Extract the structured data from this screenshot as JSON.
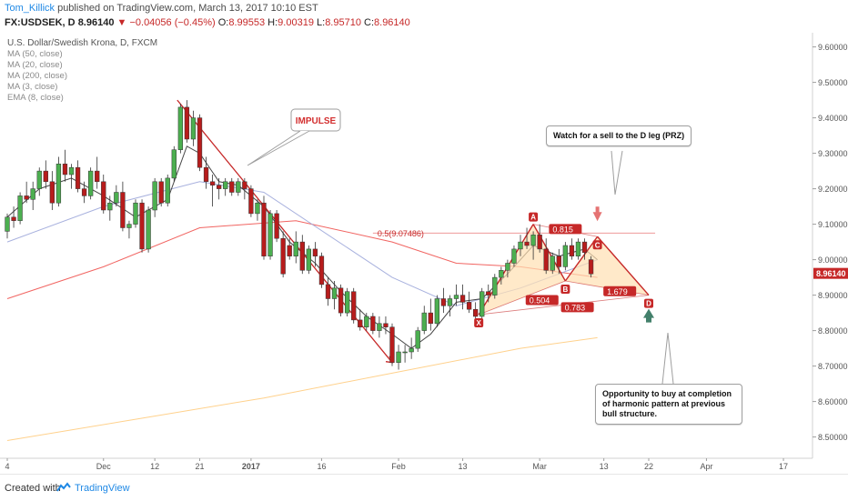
{
  "header": {
    "author": "Tom_Killick",
    "published": " published on TradingView.com, March 13, 2017 10:10 EST",
    "symbol": "FX:USDSEK, D",
    "last": "8.96140",
    "change_arrow": "▼",
    "change": "−0.04056 (−0.45%)",
    "o_label": "O:",
    "o_value": "8.99553",
    "h_label": "H:",
    "h_value": "9.00319",
    "l_label": "L:",
    "l_value": "8.95710",
    "c_label": "C:",
    "c_value": "8.96140"
  },
  "legend": [
    "U.S. Dollar/Swedish Krona, D, FXCM",
    "MA (50, close)",
    "MA (20, close)",
    "MA (200, close)",
    "MA (3, close)",
    "EMA (8, close)"
  ],
  "annotations": {
    "impulse": "IMPULSE",
    "sell_note": "Watch for a sell to the D leg (PRZ)",
    "buy_note": "Opportunity to buy at completion of harmonic pattern at previous bull structure.",
    "fib_level": "0.5(9.07486)",
    "ratio_ac": "0.815",
    "ratio_xb": "0.504",
    "ratio_bd": "1.679",
    "ratio_xd": "0.783",
    "pt_x": "X",
    "pt_a": "A",
    "pt_b": "B",
    "pt_c": "C",
    "pt_d": "D"
  },
  "footer": {
    "created": "Created with",
    "brand": "TradingView"
  },
  "colors": {
    "up": "#4caf50",
    "down": "#b71c1c",
    "ma50": "#ef5350",
    "ma20": "#9fa8da",
    "ma200": "#ffcc80",
    "ma3": "#333333",
    "pattern": "#c62828",
    "pattern_fill": "#ffe0b2",
    "price_tag": "#c62828",
    "sell_arrow": "#e57373",
    "buy_arrow": "#43806b"
  },
  "chart_data": {
    "type": "candlestick",
    "title": "U.S. Dollar/Swedish Krona, D, FXCM",
    "ylim": [
      8.44,
      9.64
    ],
    "y_ticks": [
      "9.60000",
      "9.50000",
      "9.40000",
      "9.30000",
      "9.20000",
      "9.10000",
      "9.00000",
      "8.90000",
      "8.80000",
      "8.70000",
      "8.60000",
      "8.50000"
    ],
    "y_tick_values": [
      9.6,
      9.5,
      9.4,
      9.3,
      9.2,
      9.1,
      9.0,
      8.9,
      8.8,
      8.7,
      8.6,
      8.5
    ],
    "last_price": "8.96140",
    "last_price_value": 8.9614,
    "x_ticks": [
      "4",
      "Dec",
      "12",
      "21",
      "2017",
      "16",
      "Feb",
      "13",
      "Mar",
      "13",
      "22",
      "Apr",
      "17"
    ],
    "x_tick_index": [
      0,
      15,
      23,
      30,
      38,
      49,
      61,
      71,
      83,
      93,
      100,
      109,
      121
    ],
    "candles": [
      [
        9.08,
        9.13,
        9.06,
        9.12
      ],
      [
        9.12,
        9.15,
        9.09,
        9.11
      ],
      [
        9.11,
        9.19,
        9.1,
        9.18
      ],
      [
        9.18,
        9.22,
        9.16,
        9.17
      ],
      [
        9.17,
        9.22,
        9.14,
        9.2
      ],
      [
        9.2,
        9.26,
        9.18,
        9.25
      ],
      [
        9.25,
        9.28,
        9.2,
        9.22
      ],
      [
        9.22,
        9.25,
        9.14,
        9.16
      ],
      [
        9.16,
        9.29,
        9.15,
        9.27
      ],
      [
        9.27,
        9.31,
        9.22,
        9.24
      ],
      [
        9.24,
        9.27,
        9.2,
        9.26
      ],
      [
        9.26,
        9.28,
        9.19,
        9.2
      ],
      [
        9.2,
        9.22,
        9.16,
        9.18
      ],
      [
        9.18,
        9.26,
        9.17,
        9.25
      ],
      [
        9.25,
        9.29,
        9.2,
        9.22
      ],
      [
        9.22,
        9.24,
        9.13,
        9.14
      ],
      [
        9.14,
        9.18,
        9.11,
        9.16
      ],
      [
        9.16,
        9.21,
        9.15,
        9.19
      ],
      [
        9.19,
        9.22,
        9.08,
        9.09
      ],
      [
        9.09,
        9.11,
        9.06,
        9.1
      ],
      [
        9.1,
        9.17,
        9.09,
        9.16
      ],
      [
        9.16,
        9.17,
        9.02,
        9.03
      ],
      [
        9.03,
        9.15,
        9.02,
        9.14
      ],
      [
        9.14,
        9.23,
        9.12,
        9.22
      ],
      [
        9.22,
        9.23,
        9.15,
        9.16
      ],
      [
        9.16,
        9.24,
        9.15,
        9.23
      ],
      [
        9.23,
        9.32,
        9.22,
        9.31
      ],
      [
        9.31,
        9.44,
        9.3,
        9.43
      ],
      [
        9.43,
        9.45,
        9.33,
        9.34
      ],
      [
        9.34,
        9.42,
        9.32,
        9.4
      ],
      [
        9.4,
        9.41,
        9.25,
        9.26
      ],
      [
        9.26,
        9.29,
        9.2,
        9.22
      ],
      [
        9.22,
        9.24,
        9.15,
        9.21
      ],
      [
        9.21,
        9.23,
        9.17,
        9.2
      ],
      [
        9.2,
        9.23,
        9.18,
        9.22
      ],
      [
        9.22,
        9.23,
        9.18,
        9.19
      ],
      [
        9.19,
        9.23,
        9.18,
        9.22
      ],
      [
        9.22,
        9.23,
        9.17,
        9.2
      ],
      [
        9.2,
        9.21,
        9.12,
        9.13
      ],
      [
        9.13,
        9.17,
        9.11,
        9.16
      ],
      [
        9.16,
        9.18,
        9.0,
        9.01
      ],
      [
        9.01,
        9.14,
        9.0,
        9.13
      ],
      [
        9.13,
        9.14,
        9.05,
        9.06
      ],
      [
        9.06,
        9.08,
        8.95,
        8.96
      ],
      [
        9.04,
        9.06,
        9.0,
        9.01
      ],
      [
        9.01,
        9.08,
        8.99,
        9.05
      ],
      [
        9.05,
        9.07,
        8.96,
        8.97
      ],
      [
        8.97,
        9.04,
        8.96,
        9.03
      ],
      [
        9.03,
        9.05,
        8.98,
        9.01
      ],
      [
        9.01,
        9.02,
        8.92,
        8.93
      ],
      [
        8.93,
        8.95,
        8.87,
        8.89
      ],
      [
        8.89,
        8.94,
        8.86,
        8.92
      ],
      [
        8.92,
        8.93,
        8.84,
        8.85
      ],
      [
        8.85,
        8.92,
        8.84,
        8.91
      ],
      [
        8.91,
        8.92,
        8.82,
        8.83
      ],
      [
        8.83,
        8.86,
        8.8,
        8.81
      ],
      [
        8.81,
        8.85,
        8.8,
        8.84
      ],
      [
        8.84,
        8.85,
        8.79,
        8.8
      ],
      [
        8.8,
        8.84,
        8.78,
        8.82
      ],
      [
        8.82,
        8.84,
        8.79,
        8.81
      ],
      [
        8.81,
        8.82,
        8.7,
        8.71
      ],
      [
        8.71,
        8.76,
        8.69,
        8.74
      ],
      [
        8.74,
        8.76,
        8.71,
        8.74
      ],
      [
        8.74,
        8.78,
        8.72,
        8.75
      ],
      [
        8.75,
        8.81,
        8.74,
        8.8
      ],
      [
        8.8,
        8.87,
        8.79,
        8.85
      ],
      [
        8.85,
        8.89,
        8.8,
        8.82
      ],
      [
        8.82,
        8.9,
        8.81,
        8.89
      ],
      [
        8.89,
        8.92,
        8.85,
        8.87
      ],
      [
        8.87,
        8.9,
        8.84,
        8.89
      ],
      [
        8.89,
        8.93,
        8.87,
        8.9
      ],
      [
        8.9,
        8.93,
        8.86,
        8.88
      ],
      [
        8.88,
        8.91,
        8.85,
        8.86
      ],
      [
        8.86,
        8.88,
        8.83,
        8.84
      ],
      [
        8.84,
        8.92,
        8.83,
        8.91
      ],
      [
        8.91,
        8.93,
        8.88,
        8.9
      ],
      [
        8.9,
        8.96,
        8.89,
        8.95
      ],
      [
        8.95,
        8.98,
        8.93,
        8.97
      ],
      [
        8.97,
        9.0,
        8.95,
        8.99
      ],
      [
        8.99,
        9.04,
        8.98,
        9.03
      ],
      [
        9.03,
        9.07,
        9.01,
        9.05
      ],
      [
        9.05,
        9.09,
        9.03,
        9.04
      ],
      [
        9.04,
        9.08,
        9.0,
        9.07
      ],
      [
        9.07,
        9.1,
        9.02,
        9.03
      ],
      [
        9.03,
        9.06,
        8.96,
        8.97
      ],
      [
        8.97,
        9.02,
        8.96,
        9.01
      ],
      [
        9.01,
        9.03,
        8.96,
        8.98
      ],
      [
        8.98,
        9.05,
        8.97,
        9.04
      ],
      [
        9.04,
        9.06,
        9.0,
        9.01
      ],
      [
        9.01,
        9.06,
        9.0,
        9.05
      ],
      [
        9.05,
        9.06,
        9.0,
        9.02
      ],
      [
        9.0,
        9.01,
        8.95,
        8.96
      ]
    ],
    "series": [
      {
        "name": "MA (50, close)",
        "x": [
          0,
          15,
          30,
          45,
          60,
          70,
          80,
          92
        ],
        "y": [
          8.89,
          8.98,
          9.09,
          9.11,
          9.05,
          8.99,
          8.98,
          8.95
        ]
      },
      {
        "name": "MA (20, close)",
        "x": [
          0,
          15,
          30,
          40,
          50,
          60,
          70,
          80,
          92
        ],
        "y": [
          9.05,
          9.15,
          9.22,
          9.19,
          9.07,
          8.95,
          8.87,
          8.92,
          9.0
        ]
      },
      {
        "name": "MA (200, close)",
        "x": [
          0,
          20,
          40,
          60,
          80,
          92
        ],
        "y": [
          8.49,
          8.55,
          8.61,
          8.68,
          8.75,
          8.78
        ]
      },
      {
        "name": "EMA (8, close)",
        "x": [
          0,
          5,
          10,
          15,
          20,
          25,
          28,
          30,
          33,
          36,
          40,
          44,
          48,
          52,
          56,
          60,
          63,
          66,
          70,
          74,
          78,
          82,
          86,
          90,
          92
        ],
        "y": [
          9.12,
          9.2,
          9.23,
          9.18,
          9.12,
          9.17,
          9.32,
          9.3,
          9.22,
          9.21,
          9.15,
          9.05,
          8.99,
          8.91,
          8.84,
          8.79,
          8.75,
          8.79,
          8.88,
          8.89,
          8.96,
          9.04,
          9.01,
          9.03,
          9.0
        ]
      }
    ],
    "pattern_points": {
      "X": [
        73.5,
        8.845
      ],
      "A": [
        82,
        9.1
      ],
      "B": [
        87,
        8.94
      ],
      "C": [
        92,
        9.065
      ],
      "D": [
        100,
        8.9
      ]
    },
    "pattern_extension": [
      105,
      8.85
    ],
    "fib_line": {
      "y": 9.07486,
      "x0": 57,
      "x1": 101
    },
    "impulse_line": {
      "x0": 26.5,
      "y0": 9.45,
      "x1": 60,
      "y1": 8.71
    }
  }
}
